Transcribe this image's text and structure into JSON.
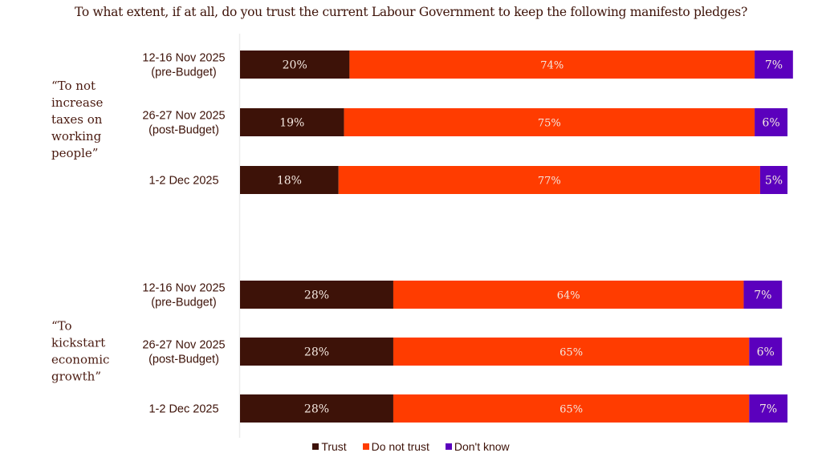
{
  "chart_data": {
    "type": "bar",
    "orientation": "horizontal",
    "stacked": true,
    "title": "To what extent, if at all, do you trust the current Labour Government to keep the following manifesto pledges?",
    "xlabel": "",
    "ylabel": "",
    "xlim": [
      0,
      100
    ],
    "grid": false,
    "legend_position": "bottom",
    "legend": [
      {
        "name": "Trust",
        "color": "#3d1208"
      },
      {
        "name": "Do not trust",
        "color": "#ff3c00"
      },
      {
        "name": "Don't know",
        "color": "#5b00bd"
      }
    ],
    "groups": [
      {
        "label_lines": [
          "“To not",
          "increase",
          "taxes on",
          "working",
          "people”"
        ],
        "rows": [
          {
            "label_lines": [
              "12-16 Nov 2025",
              "(pre-Budget)"
            ],
            "values": [
              20,
              74,
              7
            ],
            "labels": [
              "20%",
              "74%",
              "7%"
            ]
          },
          {
            "label_lines": [
              "26-27 Nov 2025",
              "(post-Budget)"
            ],
            "values": [
              19,
              75,
              6
            ],
            "labels": [
              "19%",
              "75%",
              "6%"
            ]
          },
          {
            "label_lines": [
              "1-2 Dec 2025"
            ],
            "values": [
              18,
              77,
              5
            ],
            "labels": [
              "18%",
              "77%",
              "5%"
            ]
          }
        ]
      },
      {
        "label_lines": [
          "“To",
          "kickstart",
          "economic",
          "growth”"
        ],
        "rows": [
          {
            "label_lines": [
              "12-16 Nov 2025",
              "(pre-Budget)"
            ],
            "values": [
              28,
              64,
              7
            ],
            "labels": [
              "28%",
              "64%",
              "7%"
            ]
          },
          {
            "label_lines": [
              "26-27 Nov 2025",
              "(post-Budget)"
            ],
            "values": [
              28,
              65,
              6
            ],
            "labels": [
              "28%",
              "65%",
              "6%"
            ]
          },
          {
            "label_lines": [
              "1-2 Dec 2025"
            ],
            "values": [
              28,
              65,
              7
            ],
            "labels": [
              "28%",
              "65%",
              "7%"
            ]
          }
        ]
      }
    ]
  }
}
